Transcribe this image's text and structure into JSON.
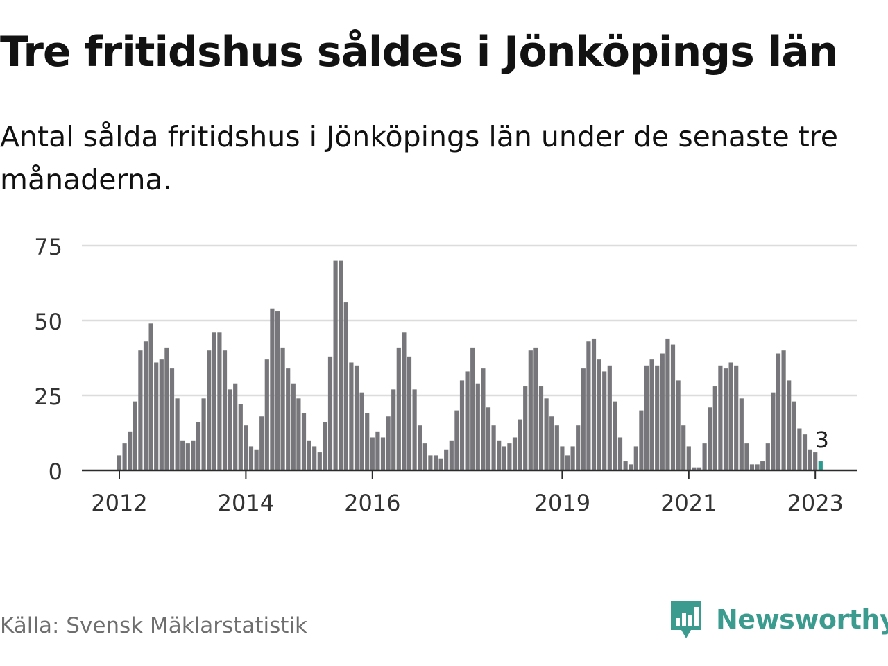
{
  "title": "Tre fritidshus såldes i Jönköpings län",
  "subtitle": "Antal sålda fritidshus i Jönköpings län under de senaste tre månaderna.",
  "source": "Källa: Svensk Mäklarstatistik",
  "brand": {
    "name": "Newsworthy",
    "icon": "newsworthy-logo-icon",
    "color": "#3c9b8f"
  },
  "colors": {
    "bar": "#77767b",
    "highlight": "#2b9b8d",
    "grid": "#dcdcdc",
    "axis": "#2b2b2b",
    "text": "#333333"
  },
  "chart_data": {
    "type": "bar",
    "title": "Tre fritidshus såldes i Jönköpings län",
    "xlabel": "",
    "ylabel": "",
    "ylim": [
      0,
      75
    ],
    "yticks": [
      0,
      25,
      50,
      75
    ],
    "x_start": "2012-01",
    "xticks": [
      {
        "label": "2012",
        "index": 0
      },
      {
        "label": "2014",
        "index": 24
      },
      {
        "label": "2016",
        "index": 48
      },
      {
        "label": "2019",
        "index": 84
      },
      {
        "label": "2021",
        "index": 108
      },
      {
        "label": "2023",
        "index": 132
      }
    ],
    "values": [
      5,
      9,
      13,
      23,
      40,
      43,
      49,
      36,
      37,
      41,
      34,
      24,
      10,
      9,
      10,
      16,
      24,
      40,
      46,
      46,
      40,
      27,
      29,
      22,
      15,
      8,
      7,
      18,
      37,
      54,
      53,
      41,
      34,
      29,
      24,
      19,
      10,
      8,
      6,
      16,
      38,
      70,
      70,
      56,
      36,
      35,
      26,
      19,
      11,
      13,
      11,
      18,
      27,
      41,
      46,
      38,
      27,
      15,
      9,
      5,
      5,
      4,
      7,
      10,
      20,
      30,
      33,
      41,
      29,
      34,
      21,
      15,
      10,
      8,
      9,
      11,
      17,
      28,
      40,
      41,
      28,
      24,
      18,
      15,
      8,
      5,
      8,
      15,
      34,
      43,
      44,
      37,
      33,
      35,
      23,
      11,
      3,
      2,
      8,
      20,
      35,
      37,
      35,
      39,
      44,
      42,
      30,
      15,
      8,
      1,
      1,
      9,
      21,
      28,
      35,
      34,
      36,
      35,
      24,
      9,
      2,
      2,
      3,
      9,
      26,
      39,
      40,
      30,
      23,
      14,
      12,
      7,
      6,
      3
    ],
    "highlight_index": 133,
    "highlight_label": "3"
  }
}
